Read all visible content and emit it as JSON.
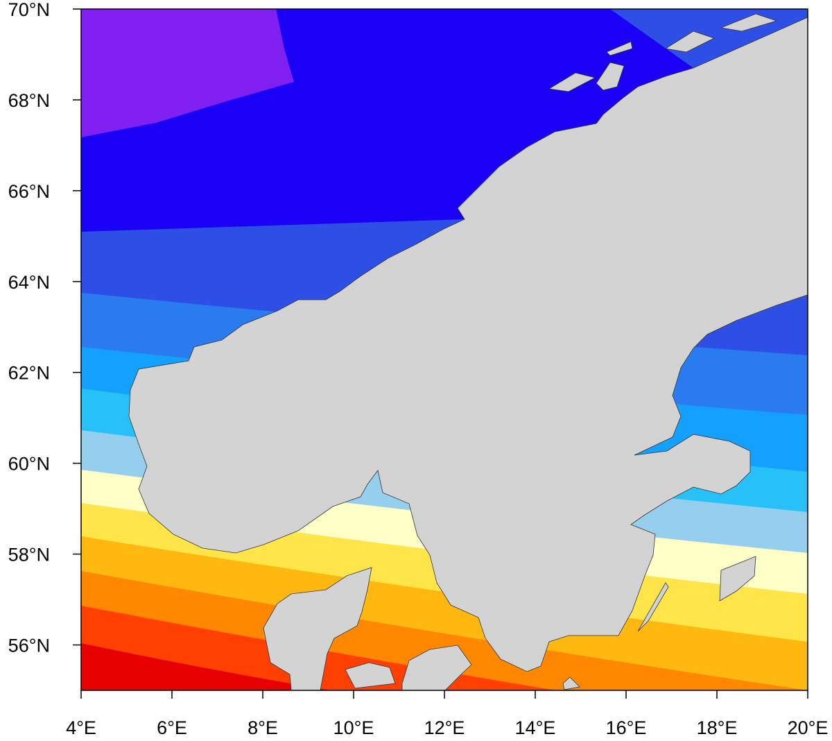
{
  "map": {
    "extent": {
      "lon": [
        4,
        20
      ],
      "lat": [
        55,
        70
      ]
    },
    "x_ticks": [
      "4°E",
      "6°E",
      "8°E",
      "10°E",
      "12°E",
      "14°E",
      "16°E",
      "18°E",
      "20°E"
    ],
    "y_ticks": [
      "70°N",
      "68°N",
      "66°N",
      "64°N",
      "62°N",
      "60°N",
      "58°N",
      "56°N"
    ],
    "land_color": "#D3D3D3",
    "band_colors_south_to_north": [
      "#E80000",
      "#FF4000",
      "#FF8800",
      "#FFB810",
      "#FFE44A",
      "#FFFFC8",
      "#96CFEE",
      "#28C0F8",
      "#14A0FF",
      "#2A7BF0",
      "#2E4FE6",
      "#1A00F5",
      "#8020F0"
    ]
  }
}
